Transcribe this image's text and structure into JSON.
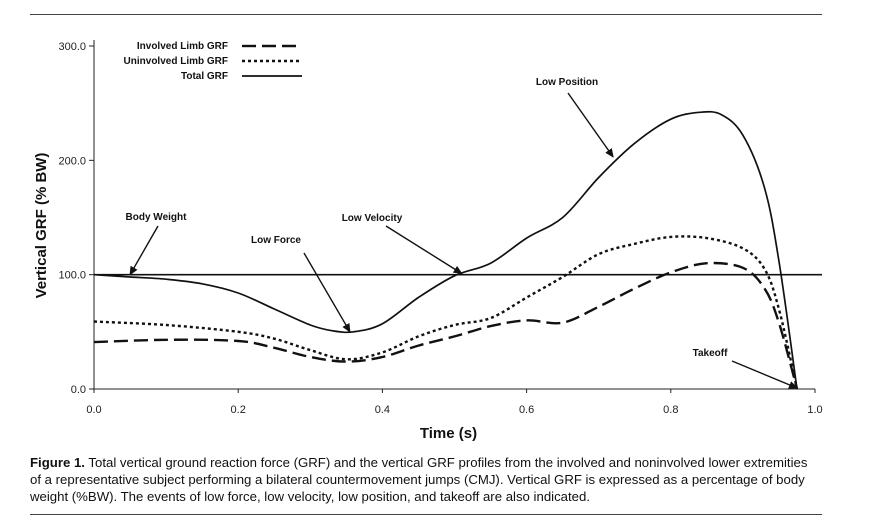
{
  "caption": {
    "label": "Figure 1.",
    "text": " Total vertical ground reaction force (GRF) and the vertical GRF profiles from the involved and noninvolved lower extremities of a representative subject performing a bilateral countermovement jumps (CMJ). Vertical GRF is expressed as a percentage of body weight (%BW). The events of low force, low velocity, low position, and takeoff are also indicated."
  },
  "chart_data": {
    "type": "line",
    "xlabel": "Time (s)",
    "ylabel": "Vertical GRF (% BW)",
    "xlim": [
      0,
      1.0
    ],
    "ylim": [
      0,
      300
    ],
    "xticks": [
      0.0,
      0.2,
      0.4,
      0.6,
      0.8,
      1.0
    ],
    "xtick_labels": [
      "0.0",
      "0.2",
      "0.4",
      "0.6",
      "0.8",
      "1.0"
    ],
    "yticks": [
      0,
      100,
      200,
      300
    ],
    "ytick_labels": [
      "0.0",
      "100.0",
      "200.0",
      "300.0"
    ],
    "legend_position": "top-left",
    "reference_line": {
      "name": "Body Weight",
      "y": 100
    },
    "series": [
      {
        "name": "Involved Limb GRF",
        "style": "dashed",
        "x": [
          0.0,
          0.1,
          0.2,
          0.25,
          0.3,
          0.35,
          0.4,
          0.45,
          0.5,
          0.55,
          0.6,
          0.65,
          0.7,
          0.75,
          0.8,
          0.85,
          0.9,
          0.93,
          0.95,
          0.975
        ],
        "y": [
          41,
          43,
          42,
          36,
          28,
          24,
          28,
          38,
          46,
          55,
          60,
          58,
          72,
          88,
          102,
          110,
          106,
          88,
          58,
          0
        ]
      },
      {
        "name": "Uninvolved Limb GRF",
        "style": "dotted",
        "x": [
          0.0,
          0.1,
          0.2,
          0.25,
          0.3,
          0.35,
          0.4,
          0.45,
          0.5,
          0.55,
          0.6,
          0.65,
          0.7,
          0.75,
          0.8,
          0.85,
          0.9,
          0.93,
          0.95,
          0.975
        ],
        "y": [
          59,
          56,
          50,
          44,
          34,
          26,
          32,
          46,
          56,
          62,
          80,
          98,
          118,
          127,
          133,
          132,
          123,
          105,
          70,
          0
        ]
      },
      {
        "name": "Total GRF",
        "style": "solid",
        "x": [
          0.0,
          0.05,
          0.1,
          0.15,
          0.2,
          0.25,
          0.3,
          0.33,
          0.36,
          0.4,
          0.45,
          0.5,
          0.55,
          0.6,
          0.65,
          0.7,
          0.75,
          0.8,
          0.84,
          0.87,
          0.9,
          0.93,
          0.95,
          0.975
        ],
        "y": [
          100,
          98,
          96,
          92,
          84,
          70,
          56,
          51,
          50,
          57,
          80,
          99,
          110,
          132,
          150,
          185,
          215,
          236,
          242,
          240,
          222,
          176,
          112,
          0
        ]
      }
    ],
    "annotations": [
      {
        "text": "Body Weight",
        "x": 0.05,
        "y": 100
      },
      {
        "text": "Low Force",
        "x": 0.355,
        "y": 50
      },
      {
        "text": "Low Velocity",
        "x": 0.51,
        "y": 101
      },
      {
        "text": "Low Position",
        "x": 0.72,
        "y": 203
      },
      {
        "text": "Takeoff",
        "x": 0.975,
        "y": 0
      }
    ]
  }
}
